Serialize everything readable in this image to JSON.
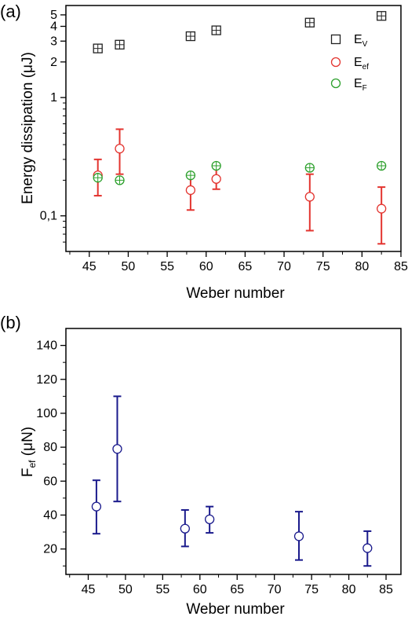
{
  "chart_data": [
    {
      "panel_label": "(a)",
      "type": "scatter",
      "xlabel": "Weber number",
      "ylabel": "Energy dissipation (μJ)",
      "xlim": [
        42,
        85
      ],
      "ylim": [
        0.05,
        6
      ],
      "yscale": "log",
      "x_ticks": [
        45,
        50,
        55,
        60,
        65,
        70,
        75,
        80,
        85
      ],
      "y_tick_labels": [
        "0,1",
        "1",
        "2",
        "3",
        "4",
        "5"
      ],
      "y_tick_values": [
        0.1,
        1,
        2,
        3,
        4,
        5
      ],
      "legend_position": "top-right",
      "series": [
        {
          "legend_base": "E",
          "legend_sub": "V",
          "marker": "square-cross",
          "color": "#222222",
          "x": [
            46.1,
            48.9,
            58.0,
            61.3,
            73.3,
            82.5
          ],
          "y": [
            2.6,
            2.8,
            3.3,
            3.7,
            4.3,
            4.9
          ],
          "err": [
            0,
            0,
            0,
            0,
            0,
            0
          ]
        },
        {
          "legend_base": "E",
          "legend_sub": "ef",
          "marker": "circle",
          "color": "#e3342f",
          "x": [
            46.1,
            48.9,
            58.0,
            61.3,
            73.3,
            82.5
          ],
          "y": [
            0.22,
            0.37,
            0.165,
            0.205,
            0.145,
            0.115
          ],
          "err_low": [
            0.148,
            0.225,
            0.112,
            0.168,
            0.075,
            0.058
          ],
          "err_high": [
            0.3,
            0.54,
            0.225,
            0.26,
            0.225,
            0.175
          ]
        },
        {
          "legend_base": "E",
          "legend_sub": "F",
          "marker": "circle-cross",
          "color": "#2ca02c",
          "x": [
            46.1,
            48.9,
            58.0,
            61.3,
            73.3,
            82.5
          ],
          "y": [
            0.21,
            0.2,
            0.22,
            0.265,
            0.255,
            0.265
          ]
        }
      ]
    },
    {
      "panel_label": "(b)",
      "type": "scatter",
      "xlabel": "Weber number",
      "ylabel_base": "F",
      "ylabel_sub": "ef",
      "ylabel_unit": " (μN)",
      "xlim": [
        42,
        87
      ],
      "ylim": [
        5,
        150
      ],
      "x_ticks": [
        45,
        50,
        55,
        60,
        65,
        70,
        75,
        80,
        85
      ],
      "y_ticks": [
        20,
        40,
        60,
        80,
        100,
        120,
        140
      ],
      "series": [
        {
          "marker": "circle",
          "color": "#1a1a8c",
          "x": [
            46.1,
            48.9,
            58.0,
            61.3,
            73.3,
            82.5
          ],
          "y": [
            45,
            79,
            32,
            37.5,
            27.5,
            20.5
          ],
          "err_low": [
            29,
            48,
            21.5,
            29.5,
            13.5,
            10
          ],
          "err_high": [
            60.5,
            110,
            43,
            45,
            42,
            30.5
          ]
        }
      ]
    }
  ]
}
